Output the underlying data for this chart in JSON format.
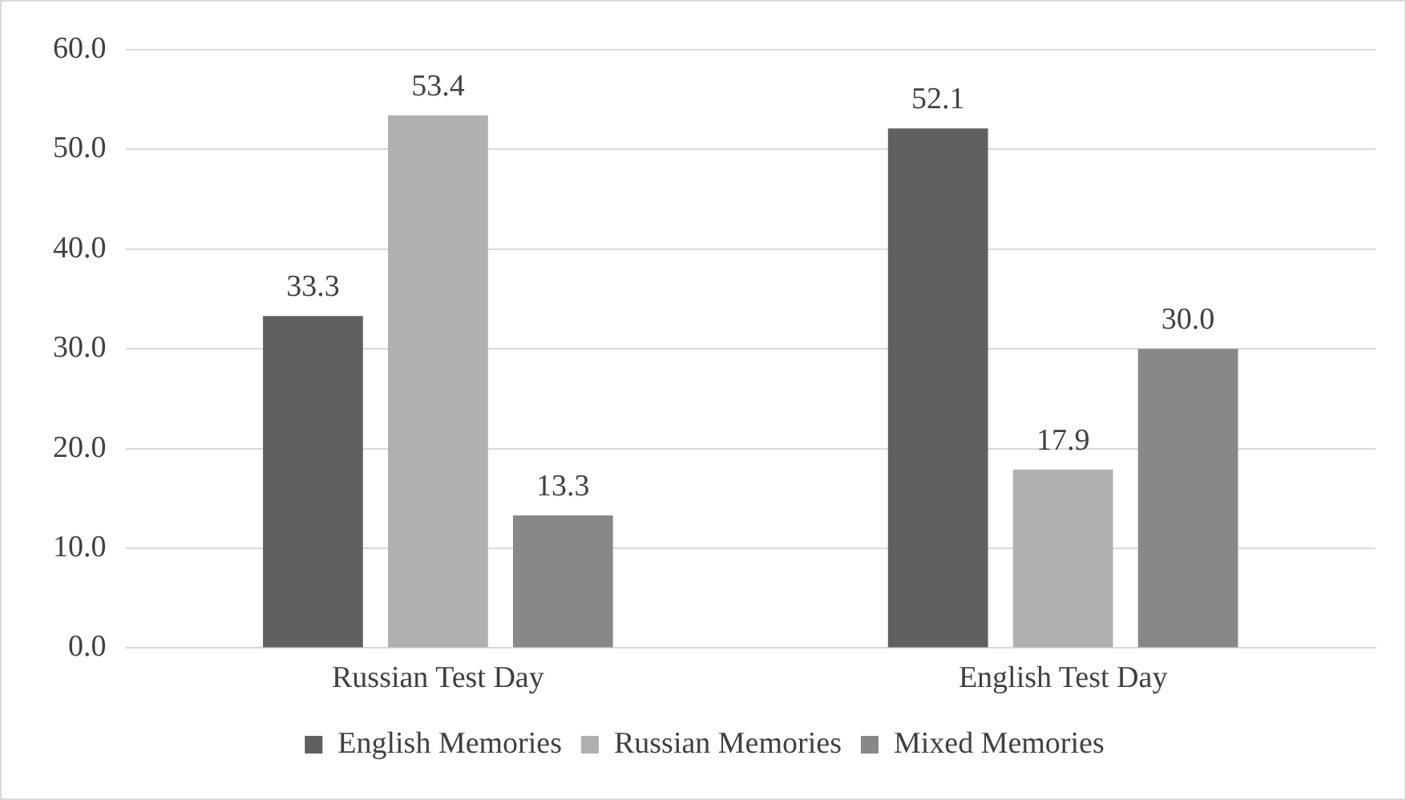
{
  "chart_data": {
    "type": "bar",
    "categories": [
      "Russian Test Day",
      "English Test Day"
    ],
    "series": [
      {
        "name": "English Memories",
        "color": "#606060",
        "values": [
          33.3,
          52.1
        ],
        "value_labels": [
          "33.3",
          "52.1"
        ]
      },
      {
        "name": "Russian Memories",
        "color": "#b0b0b0",
        "values": [
          53.4,
          17.9
        ],
        "value_labels": [
          "53.4",
          "17.9"
        ]
      },
      {
        "name": "Mixed Memories",
        "color": "#888888",
        "values": [
          13.3,
          30.0
        ],
        "value_labels": [
          "13.3",
          "30.0"
        ]
      }
    ],
    "ylim": [
      0,
      60
    ],
    "yticks": [
      {
        "value": 0,
        "label": "0.0"
      },
      {
        "value": 10,
        "label": "10.0"
      },
      {
        "value": 20,
        "label": "20.0"
      },
      {
        "value": 30,
        "label": "30.0"
      },
      {
        "value": 40,
        "label": "40.0"
      },
      {
        "value": 50,
        "label": "50.0"
      },
      {
        "value": 60,
        "label": "60.0"
      }
    ],
    "grid": "y",
    "legend": "bottom"
  }
}
